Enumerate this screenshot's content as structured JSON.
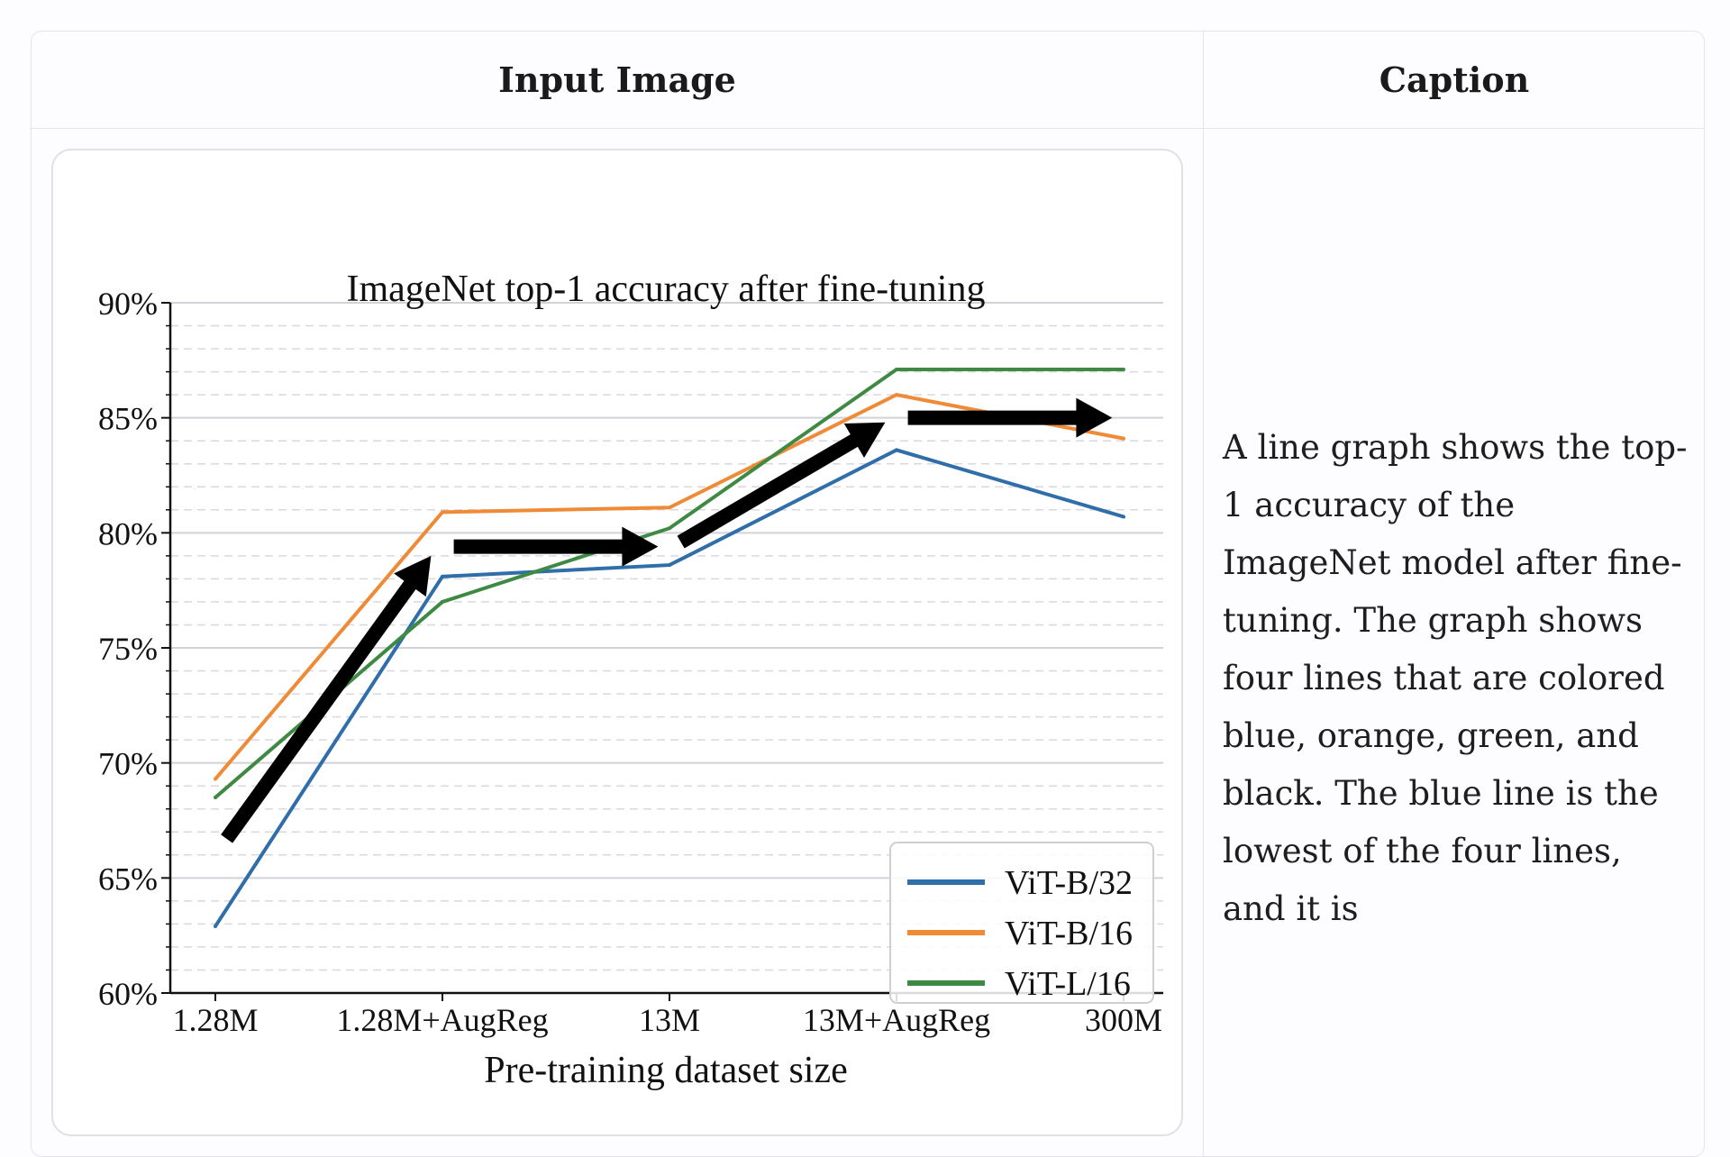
{
  "table": {
    "headers": {
      "image": "Input Image",
      "caption": "Caption"
    },
    "caption_text": "A line graph shows the top-1 accuracy of the ImageNet model after fine-tuning. The graph shows four lines that are colored blue, orange, green, and black. The blue line is the lowest of the four lines, and it is"
  },
  "chart_data": {
    "type": "line",
    "title": "ImageNet top-1 accuracy after fine-tuning",
    "xlabel": "Pre-training dataset size",
    "ylabel": "",
    "categories": [
      "1.28M",
      "1.28M+AugReg",
      "13M",
      "13M+AugReg",
      "300M"
    ],
    "ylim": [
      60,
      90
    ],
    "yticks": [
      60,
      65,
      70,
      75,
      80,
      85,
      90
    ],
    "ytick_labels": [
      "60%",
      "65%",
      "70%",
      "75%",
      "80%",
      "85%",
      "90%"
    ],
    "grid": true,
    "legend_position": "bottom-right",
    "series": [
      {
        "name": "ViT-B/32",
        "color": "#2f6ea8",
        "values": [
          62.9,
          78.1,
          78.6,
          83.6,
          80.7
        ]
      },
      {
        "name": "ViT-B/16",
        "color": "#ef8a37",
        "values": [
          69.3,
          80.9,
          81.1,
          86.0,
          84.1
        ]
      },
      {
        "name": "ViT-L/16",
        "color": "#3f8a43",
        "values": [
          68.5,
          77.0,
          80.2,
          87.1,
          87.1
        ]
      }
    ],
    "annotations": {
      "arrows_color": "#000000",
      "arrows": [
        {
          "from": [
            0.05,
            66.7
          ],
          "to": [
            0.95,
            79.0
          ]
        },
        {
          "from": [
            1.05,
            79.4
          ],
          "to": [
            1.95,
            79.4
          ]
        },
        {
          "from": [
            2.05,
            79.6
          ],
          "to": [
            2.95,
            84.8
          ]
        },
        {
          "from": [
            3.05,
            85.0
          ],
          "to": [
            3.95,
            85.0
          ]
        }
      ]
    }
  }
}
